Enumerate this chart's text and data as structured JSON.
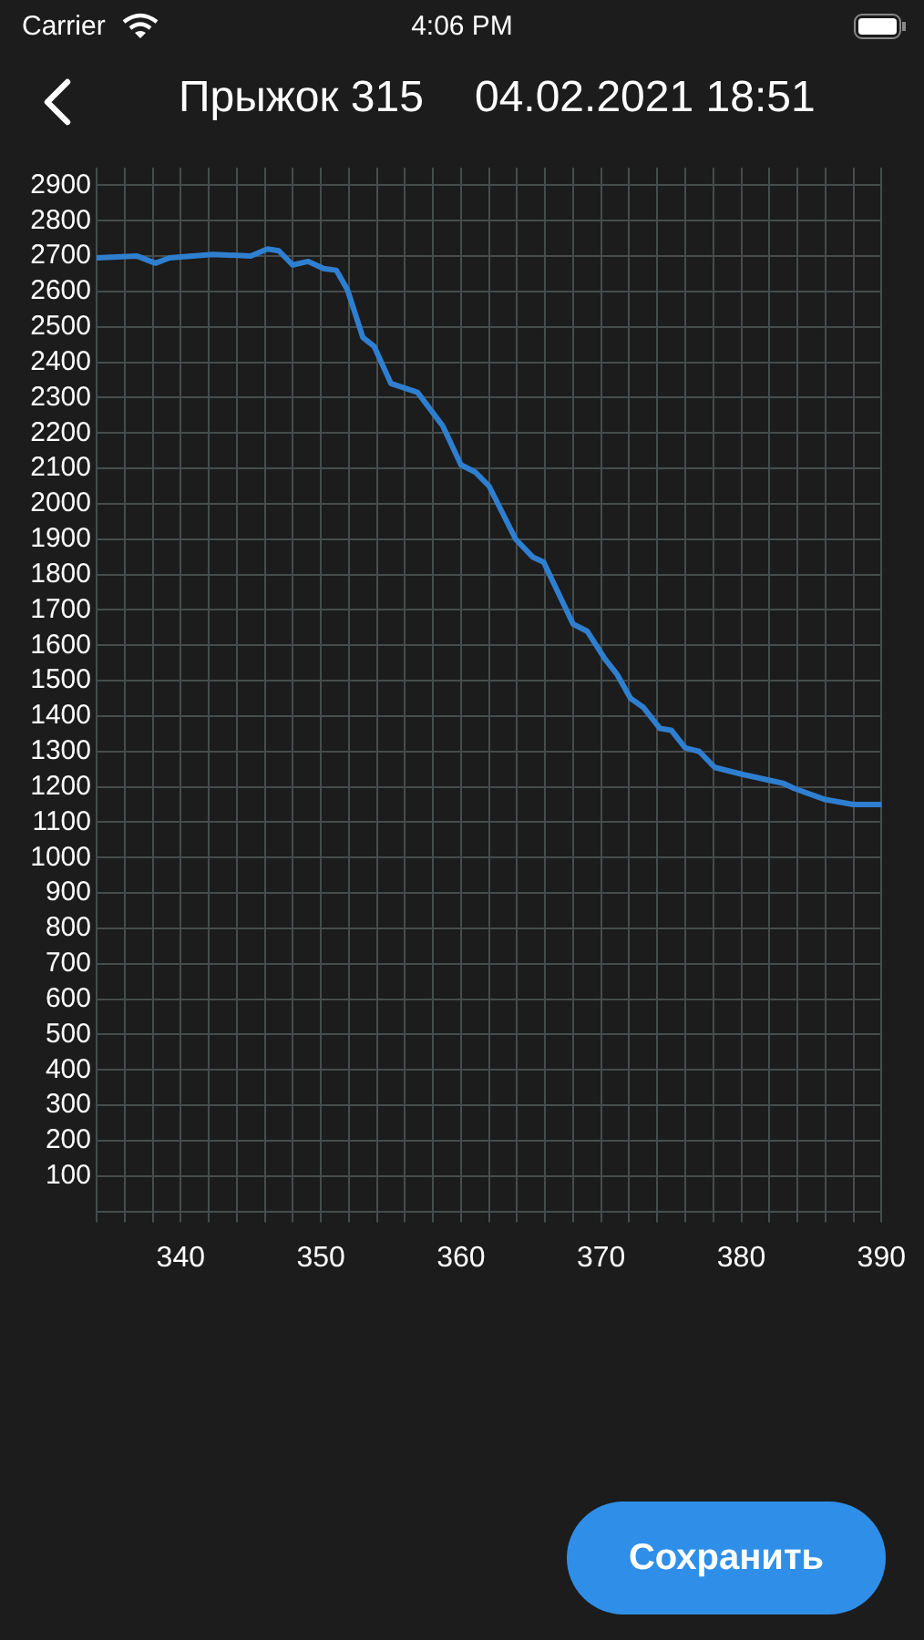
{
  "chart_data": {
    "type": "line",
    "title": "Прыжок 315",
    "subtitle": "04.02.2021 18:51",
    "annotations": [
      "Carrier",
      "4:06 PM",
      "Сохранить"
    ],
    "x": [
      334,
      336.9,
      338.2,
      339.2,
      342.3,
      345,
      346.2,
      347,
      348,
      349.1,
      350.2,
      351.1,
      351.9,
      353,
      353.8,
      355,
      356.9,
      358.7,
      360,
      361,
      362,
      363.9,
      365.1,
      365.9,
      368,
      369,
      370.3,
      371.1,
      372.1,
      373,
      374.2,
      375,
      376,
      377,
      378.1,
      380.1,
      383,
      383.8,
      385.9,
      388,
      390
    ],
    "series": [
      {
        "color": "#2f7fd0",
        "values": [
          2695,
          2700,
          2680,
          2695,
          2705,
          2700,
          2720,
          2715,
          2675,
          2685,
          2665,
          2660,
          2605,
          2470,
          2445,
          2340,
          2315,
          2220,
          2110,
          2090,
          2050,
          1900,
          1850,
          1835,
          1660,
          1640,
          1560,
          1520,
          1450,
          1425,
          1365,
          1360,
          1310,
          1300,
          1255,
          1235,
          1210,
          1195,
          1165,
          1150,
          1150
        ]
      }
    ],
    "xlim": [
      334,
      390
    ],
    "ylim": [
      0,
      2950
    ],
    "xticks": [
      {
        "value": 334,
        "label": null
      },
      {
        "value": 336,
        "label": null
      },
      {
        "value": 338,
        "label": null
      },
      340,
      {
        "value": 342,
        "label": null
      },
      {
        "value": 344,
        "label": null
      },
      {
        "value": 346,
        "label": null
      },
      {
        "value": 348,
        "label": null
      },
      350,
      {
        "value": 352,
        "label": null
      },
      {
        "value": 354,
        "label": null
      },
      {
        "value": 356,
        "label": null
      },
      {
        "value": 358,
        "label": null
      },
      360,
      {
        "value": 362,
        "label": null
      },
      {
        "value": 364,
        "label": null
      },
      {
        "value": 366,
        "label": null
      },
      {
        "value": 368,
        "label": null
      },
      370,
      {
        "value": 372,
        "label": null
      },
      {
        "value": 374,
        "label": null
      },
      {
        "value": 376,
        "label": null
      },
      {
        "value": 378,
        "label": null
      },
      380,
      {
        "value": 382,
        "label": null
      },
      {
        "value": 384,
        "label": null
      },
      {
        "value": 386,
        "label": null
      },
      {
        "value": 388,
        "label": null
      },
      390
    ],
    "yticks": [
      {
        "value": 0,
        "label": null
      },
      100,
      200,
      300,
      400,
      500,
      600,
      700,
      800,
      900,
      1000,
      1100,
      1200,
      1300,
      1400,
      1500,
      1600,
      1700,
      1800,
      1900,
      2000,
      2100,
      2200,
      2300,
      2400,
      2500,
      2600,
      2700,
      2800,
      2900
    ],
    "grid": true,
    "marker": "none",
    "line_style": "solid"
  }
}
